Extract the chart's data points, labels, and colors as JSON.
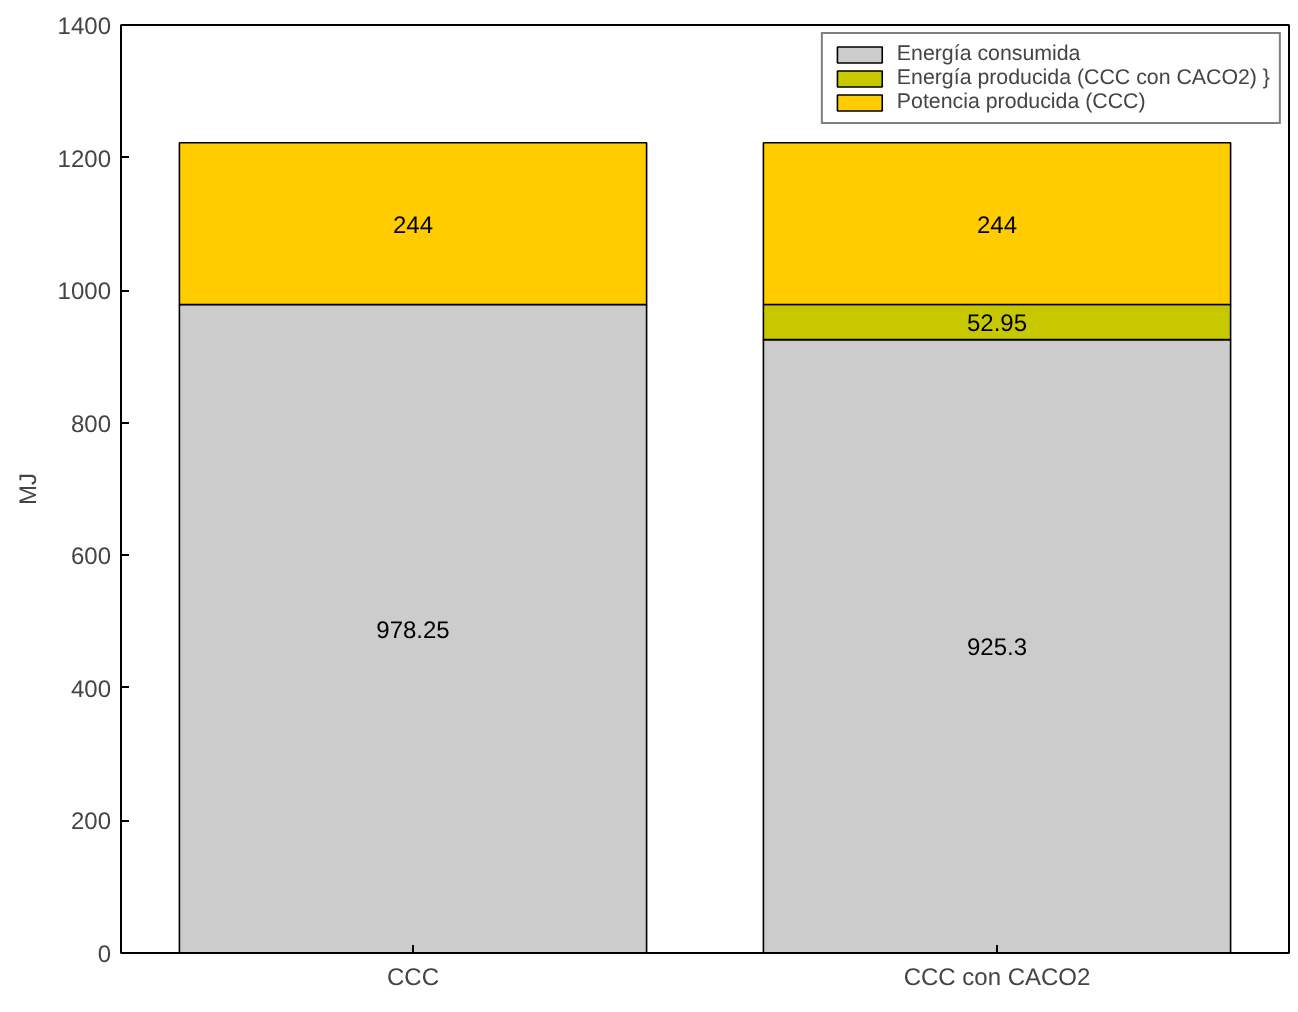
{
  "chart_data": {
    "type": "bar",
    "stacked": true,
    "ylabel": "MJ",
    "categories": [
      "CCC",
      "CCC con CACO2"
    ],
    "series": [
      {
        "name": "Energía consumida",
        "color": "#cccccc",
        "values": [
          978.25,
          925.3
        ],
        "value_labels": [
          "978.25",
          "925.3"
        ]
      },
      {
        "name": "Energía producida (CCC con CACO2) }",
        "color": "#c8c800",
        "values": [
          0,
          52.95
        ],
        "value_labels": [
          null,
          "52.95"
        ]
      },
      {
        "name": "Potencia producida (CCC)",
        "color": "#ffcc00",
        "values": [
          244,
          244
        ],
        "value_labels": [
          "244",
          "244"
        ]
      }
    ],
    "ylim": [
      0,
      1400
    ],
    "yticks": [
      0,
      200,
      400,
      600,
      800,
      1000,
      1200,
      1400
    ],
    "grid": false,
    "legend": "top right"
  }
}
